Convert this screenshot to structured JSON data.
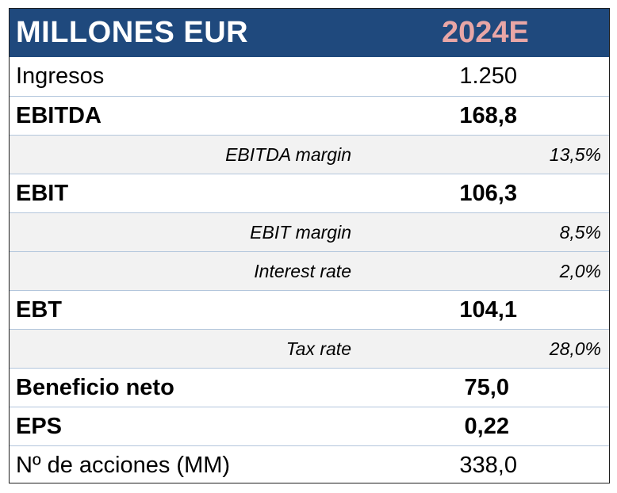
{
  "header": {
    "title": "MILLONES EUR",
    "year": "2024E"
  },
  "rows": [
    {
      "label": "Ingresos",
      "value": "1.250"
    },
    {
      "label": "EBITDA",
      "value": "168,8"
    },
    {
      "label": "EBITDA margin",
      "value": "13,5%"
    },
    {
      "label": "EBIT",
      "value": "106,3"
    },
    {
      "label": "EBIT margin",
      "value": "8,5%"
    },
    {
      "label": "Interest rate",
      "value": "2,0%"
    },
    {
      "label": "EBT",
      "value": "104,1"
    },
    {
      "label": "Tax rate",
      "value": "28,0%"
    },
    {
      "label": "Beneficio neto",
      "value": "75,0"
    },
    {
      "label": "EPS",
      "value": "0,22"
    },
    {
      "label": "Nº de acciones (MM)",
      "value": "338,0"
    }
  ]
}
